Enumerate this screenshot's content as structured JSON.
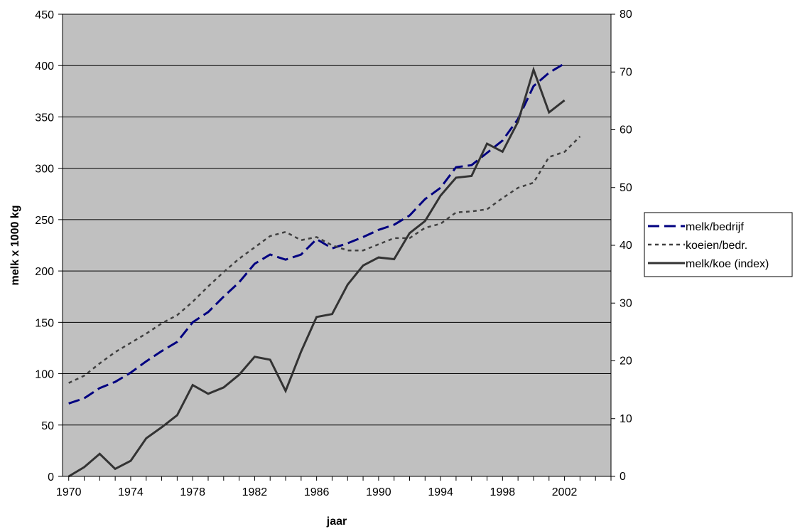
{
  "chart_data": {
    "type": "line",
    "title": "",
    "xlabel": "jaar",
    "ylabel": "melk x 1000 kg",
    "ylim": [
      0,
      450
    ],
    "y2lim": [
      0,
      80
    ],
    "xlim": [
      1969.6,
      2005
    ],
    "grid": true,
    "plot_background": "#c0c0c0",
    "legend_position": "right",
    "x_ticks": [
      1970,
      1974,
      1978,
      1982,
      1986,
      1990,
      1994,
      1998,
      2002
    ],
    "y_ticks": [
      0,
      50,
      100,
      150,
      200,
      250,
      300,
      350,
      400,
      450
    ],
    "y2_ticks": [
      0,
      10,
      20,
      30,
      40,
      50,
      60,
      70,
      80
    ],
    "series": [
      {
        "name": "melk/bedrijf",
        "axis": "left",
        "color": "#000080",
        "style": "long-dash",
        "x": [
          1970,
          1971,
          1972,
          1973,
          1974,
          1975,
          1976,
          1977,
          1978,
          1979,
          1980,
          1981,
          1982,
          1983,
          1984,
          1985,
          1986,
          1987,
          1988,
          1989,
          1990,
          1991,
          1992,
          1993,
          1994,
          1995,
          1996,
          1997,
          1998,
          1999,
          2000,
          2001,
          2002
        ],
        "y": [
          71,
          76,
          86,
          92,
          101,
          112,
          122,
          131,
          150,
          160,
          175,
          189,
          207,
          216,
          211,
          216,
          231,
          222,
          227,
          233,
          240,
          245,
          254,
          270,
          281,
          301,
          303,
          315,
          327,
          348,
          380,
          393,
          402
        ]
      },
      {
        "name": "koeien/bedr.",
        "axis": "left",
        "color": "#404040",
        "style": "short-dash",
        "x": [
          1970,
          1971,
          1972,
          1973,
          1974,
          1975,
          1976,
          1977,
          1978,
          1979,
          1980,
          1981,
          1982,
          1983,
          1984,
          1985,
          1986,
          1987,
          1988,
          1989,
          1990,
          1991,
          1992,
          1993,
          1994,
          1995,
          1996,
          1997,
          1998,
          1999,
          2000,
          2001,
          2002,
          2003
        ],
        "y": [
          91,
          98,
          110,
          121,
          130,
          139,
          149,
          157,
          170,
          185,
          199,
          212,
          223,
          234,
          238,
          230,
          233,
          225,
          220,
          220,
          226,
          232,
          232,
          242,
          246,
          257,
          258,
          260,
          271,
          281,
          286,
          311,
          316,
          331
        ]
      },
      {
        "name": "melk/koe (index)",
        "axis": "right",
        "color": "#333333",
        "style": "solid",
        "x": [
          1970,
          1971,
          1972,
          1973,
          1974,
          1975,
          1976,
          1977,
          1978,
          1979,
          1980,
          1981,
          1982,
          1983,
          1984,
          1985,
          1986,
          1987,
          1988,
          1989,
          1990,
          1991,
          1992,
          1993,
          1994,
          1995,
          1996,
          1997,
          1998,
          1999,
          2000,
          2001,
          2002
        ],
        "y": [
          0,
          1.6,
          3.9,
          1.3,
          2.7,
          6.6,
          8.5,
          10.6,
          15.8,
          14.3,
          15.4,
          17.6,
          20.7,
          20.2,
          14.8,
          21.6,
          27.6,
          28.1,
          33.2,
          36.5,
          37.9,
          37.6,
          42.1,
          44.2,
          48.6,
          51.7,
          52,
          57.6,
          56.2,
          61.4,
          70.4,
          63,
          65.1
        ]
      }
    ]
  }
}
